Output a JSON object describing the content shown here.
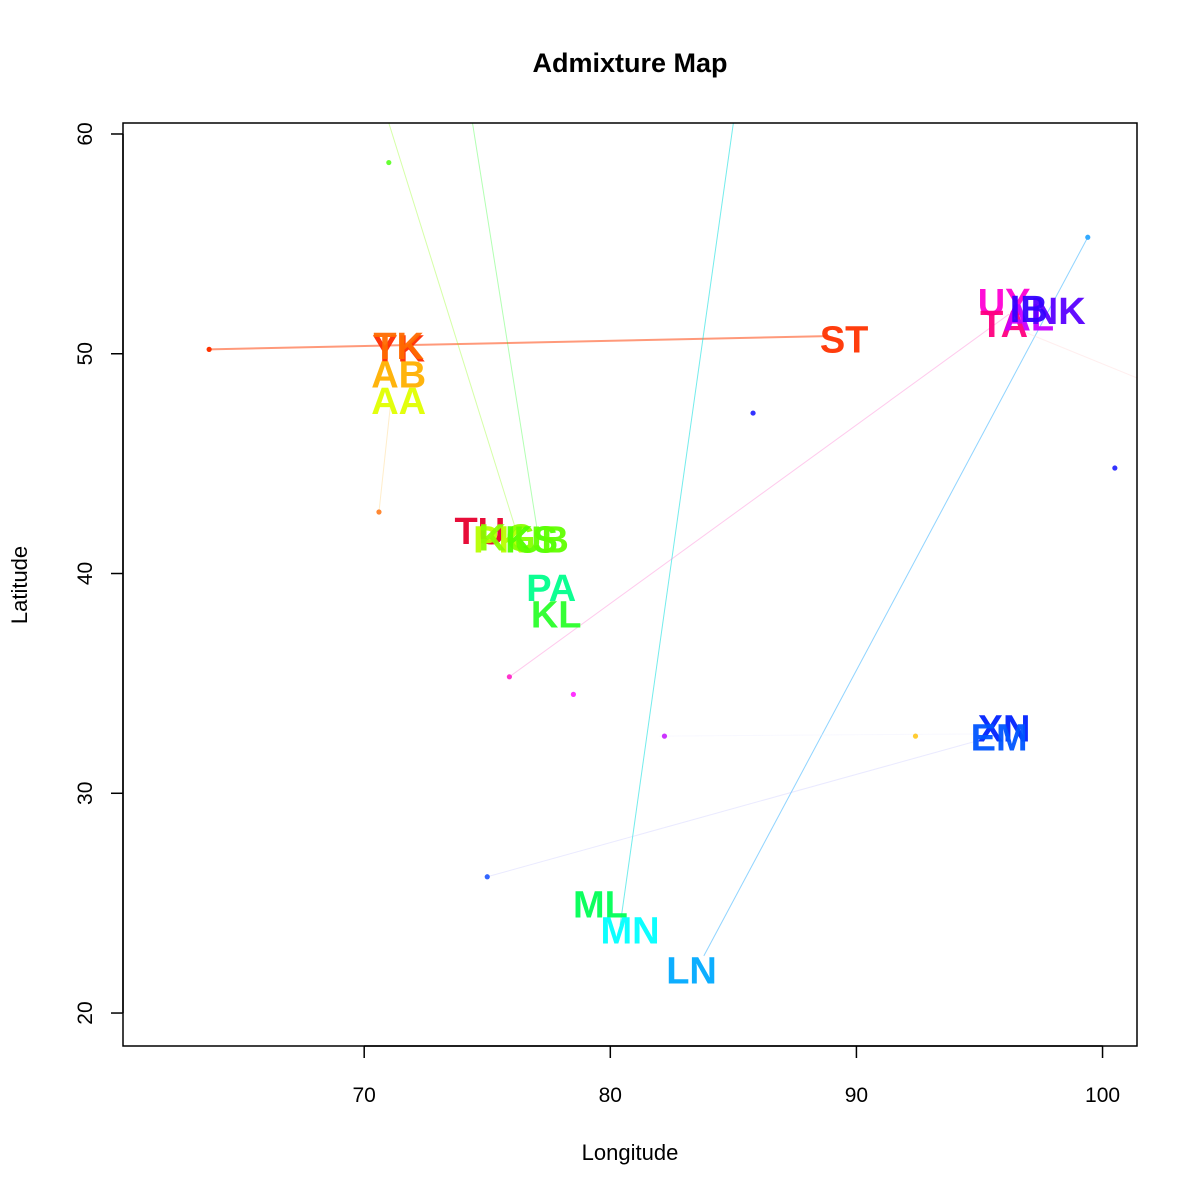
{
  "chart_data": {
    "type": "scatter",
    "title": "Admixture Map",
    "xlabel": "Longitude",
    "ylabel": "Latitude",
    "xlim": [
      60.2,
      101.4
    ],
    "ylim": [
      18.5,
      60.5
    ],
    "xticks": [
      "70",
      "80",
      "90",
      "100"
    ],
    "yticks": [
      "20",
      "30",
      "40",
      "50",
      "60"
    ],
    "xtick_values": [
      70,
      80,
      90,
      100
    ],
    "ytick_values": [
      20,
      30,
      40,
      50,
      60
    ],
    "grid": false,
    "populations": [
      {
        "label": "YK",
        "x": 71.4,
        "y": 50.2,
        "color": "#ff2a00"
      },
      {
        "label": "TK",
        "x": 71.4,
        "y": 50.3,
        "color": "#ff6a00"
      },
      {
        "label": "AB",
        "x": 71.4,
        "y": 49.0,
        "color": "#ffb000"
      },
      {
        "label": "AA",
        "x": 71.4,
        "y": 47.8,
        "color": "#e0ff00"
      },
      {
        "label": "ST",
        "x": 89.5,
        "y": 50.6,
        "color": "#ff3300"
      },
      {
        "label": "UY",
        "x": 96.0,
        "y": 52.3,
        "color": "#ff00d4"
      },
      {
        "label": "TA",
        "x": 96.0,
        "y": 51.3,
        "color": "#ff0080"
      },
      {
        "label": "AL",
        "x": 97.0,
        "y": 51.6,
        "color": "#c800ff"
      },
      {
        "label": "NK",
        "x": 98.2,
        "y": 51.9,
        "color": "#5a00ff"
      },
      {
        "label": "IB",
        "x": 97.0,
        "y": 52.0,
        "color": "#3300ff"
      },
      {
        "label": "TU",
        "x": 74.7,
        "y": 41.9,
        "color": "#e6002e"
      },
      {
        "label": "PK",
        "x": 75.5,
        "y": 41.5,
        "color": "#b6ff00"
      },
      {
        "label": "KG",
        "x": 75.8,
        "y": 41.6,
        "color": "#88ff00"
      },
      {
        "label": "KS",
        "x": 76.8,
        "y": 41.5,
        "color": "#50ff00"
      },
      {
        "label": "UB",
        "x": 77.2,
        "y": 41.5,
        "color": "#60ff00"
      },
      {
        "label": "PA",
        "x": 77.6,
        "y": 39.3,
        "color": "#00ff8c"
      },
      {
        "label": "KL",
        "x": 77.8,
        "y": 38.1,
        "color": "#2aff2a"
      },
      {
        "label": "XN",
        "x": 96.0,
        "y": 32.9,
        "color": "#0022ff"
      },
      {
        "label": "EM",
        "x": 95.8,
        "y": 32.5,
        "color": "#0055ff"
      },
      {
        "label": "ML",
        "x": 79.6,
        "y": 24.9,
        "color": "#00ff55"
      },
      {
        "label": "MN",
        "x": 80.8,
        "y": 23.7,
        "color": "#00ffff"
      },
      {
        "label": "LN",
        "x": 83.3,
        "y": 21.9,
        "color": "#00aaff"
      }
    ],
    "sample_points": [
      {
        "x": 63.7,
        "y": 50.2,
        "color": "#ff3300"
      },
      {
        "x": 71.0,
        "y": 58.7,
        "color": "#66ff33"
      },
      {
        "x": 70.6,
        "y": 42.8,
        "color": "#ff8833"
      },
      {
        "x": 75.9,
        "y": 35.3,
        "color": "#ff33cc"
      },
      {
        "x": 78.5,
        "y": 34.5,
        "color": "#ff33ff"
      },
      {
        "x": 82.2,
        "y": 32.6,
        "color": "#cc33ff"
      },
      {
        "x": 85.8,
        "y": 47.3,
        "color": "#3333ff"
      },
      {
        "x": 75.0,
        "y": 26.2,
        "color": "#3366ff"
      },
      {
        "x": 92.4,
        "y": 32.6,
        "color": "#ffcc33"
      },
      {
        "x": 99.4,
        "y": 55.3,
        "color": "#33aaff"
      },
      {
        "x": 100.5,
        "y": 44.8,
        "color": "#3333ff"
      }
    ],
    "lines": [
      {
        "x1": 63.7,
        "y1": 50.2,
        "x2": 88.8,
        "y2": 50.8,
        "color": "#ff5522",
        "width": 2,
        "opacity": 0.6
      },
      {
        "x1": 71.0,
        "y1": 60.5,
        "x2": 76.3,
        "y2": 41.5,
        "color": "#88ff00",
        "width": 1,
        "opacity": 0.35
      },
      {
        "x1": 74.4,
        "y1": 60.5,
        "x2": 77.1,
        "y2": 41.5,
        "color": "#22ff22",
        "width": 1,
        "opacity": 0.35
      },
      {
        "x1": 85.0,
        "y1": 60.5,
        "x2": 80.4,
        "y2": 24.0,
        "color": "#00dddd",
        "width": 1,
        "opacity": 0.55
      },
      {
        "x1": 99.4,
        "y1": 55.3,
        "x2": 83.8,
        "y2": 22.6,
        "color": "#22aaff",
        "width": 1,
        "opacity": 0.5
      },
      {
        "x1": 75.9,
        "y1": 35.3,
        "x2": 96.2,
        "y2": 51.8,
        "color": "#ff66cc",
        "width": 1,
        "opacity": 0.35
      },
      {
        "x1": 75.0,
        "y1": 26.2,
        "x2": 95.6,
        "y2": 32.6,
        "color": "#aaaaff",
        "width": 1,
        "opacity": 0.25
      },
      {
        "x1": 70.6,
        "y1": 42.8,
        "x2": 71.1,
        "y2": 48.0,
        "color": "#ffcc66",
        "width": 1,
        "opacity": 0.35
      },
      {
        "x1": 96.8,
        "y1": 51.0,
        "x2": 101.4,
        "y2": 48.9,
        "color": "#ffdddd",
        "width": 1,
        "opacity": 0.5
      },
      {
        "x1": 82.0,
        "y1": 32.6,
        "x2": 95.0,
        "y2": 32.7,
        "color": "#eeeeff",
        "width": 1,
        "opacity": 0.4
      }
    ]
  }
}
